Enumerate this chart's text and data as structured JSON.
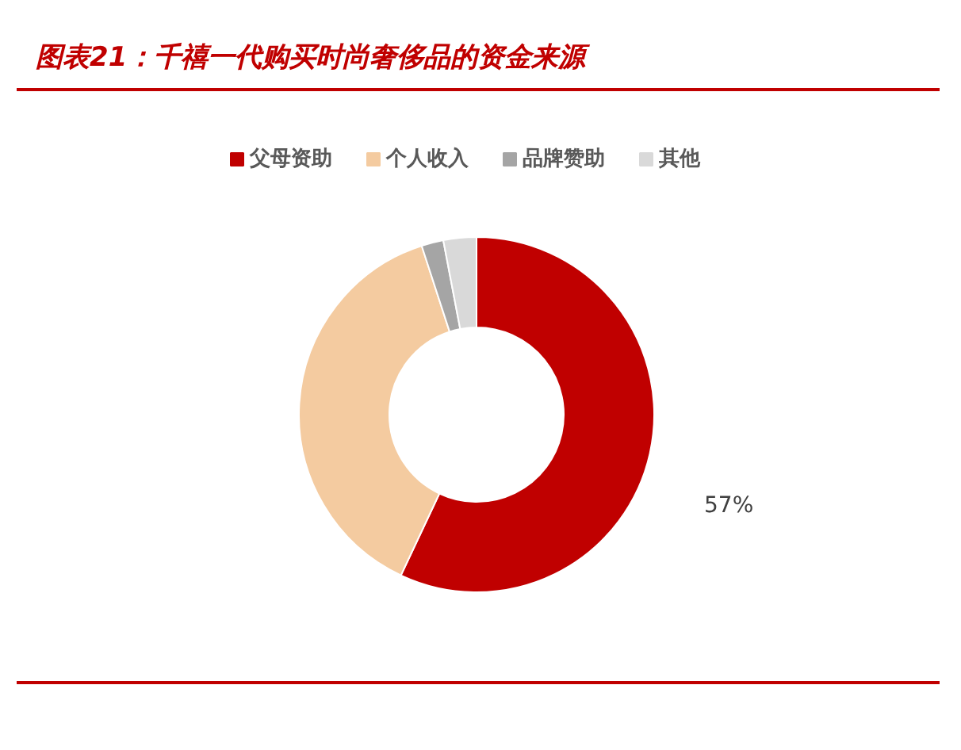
{
  "chart_data": {
    "type": "donut",
    "title": "图表21：千禧一代购买时尚奢侈品的资金来源",
    "categories": [
      "父母资助",
      "个人收入",
      "品牌赞助",
      "其他"
    ],
    "values": [
      57,
      38,
      2,
      3
    ],
    "colors": [
      "#c00000",
      "#f4cba0",
      "#a5a5a5",
      "#d9d9d9"
    ],
    "value_labels": [
      "57%",
      null,
      null,
      null
    ],
    "legend": "top"
  }
}
